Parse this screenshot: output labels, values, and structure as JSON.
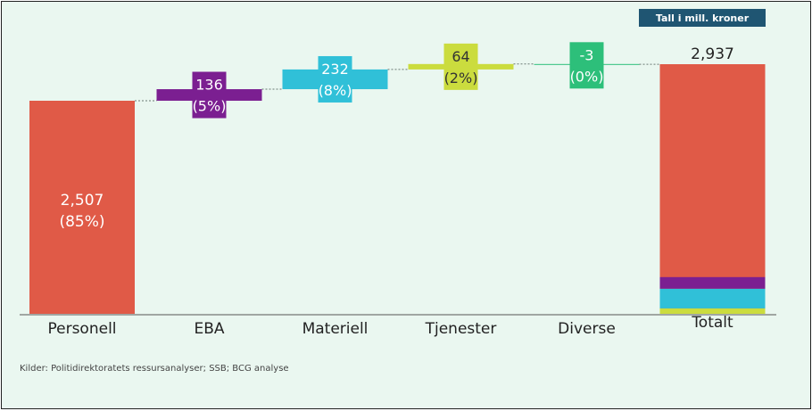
{
  "unit_badge": "Tall i mill. kroner",
  "source": "Kilder: Politidirektoratets ressursanalyser; SSB; BCG analyse",
  "chart_data": {
    "type": "bar",
    "subtype": "waterfall",
    "categories": [
      "Personell",
      "EBA",
      "Materiell",
      "Tjenester",
      "Diverse",
      "Totalt"
    ],
    "values": [
      2507,
      136,
      232,
      64,
      -3,
      2937
    ],
    "value_labels": [
      "2,507",
      "136",
      "232",
      "64",
      "-3",
      "2,937"
    ],
    "share_labels": [
      "(85%)",
      "(5%)",
      "(8%)",
      "(2%)",
      "(0%)",
      ""
    ],
    "colors": [
      "#e05a47",
      "#7b1f91",
      "#30c0d8",
      "#cbdc3e",
      "#2dbf7a",
      "#e05a47"
    ],
    "total_stack_order": [
      "Personell",
      "EBA",
      "Materiell",
      "Tjenester"
    ],
    "ylim": [
      0,
      3200
    ],
    "grid": false,
    "legend": "none",
    "title": "",
    "xlabel": "",
    "ylabel": ""
  }
}
